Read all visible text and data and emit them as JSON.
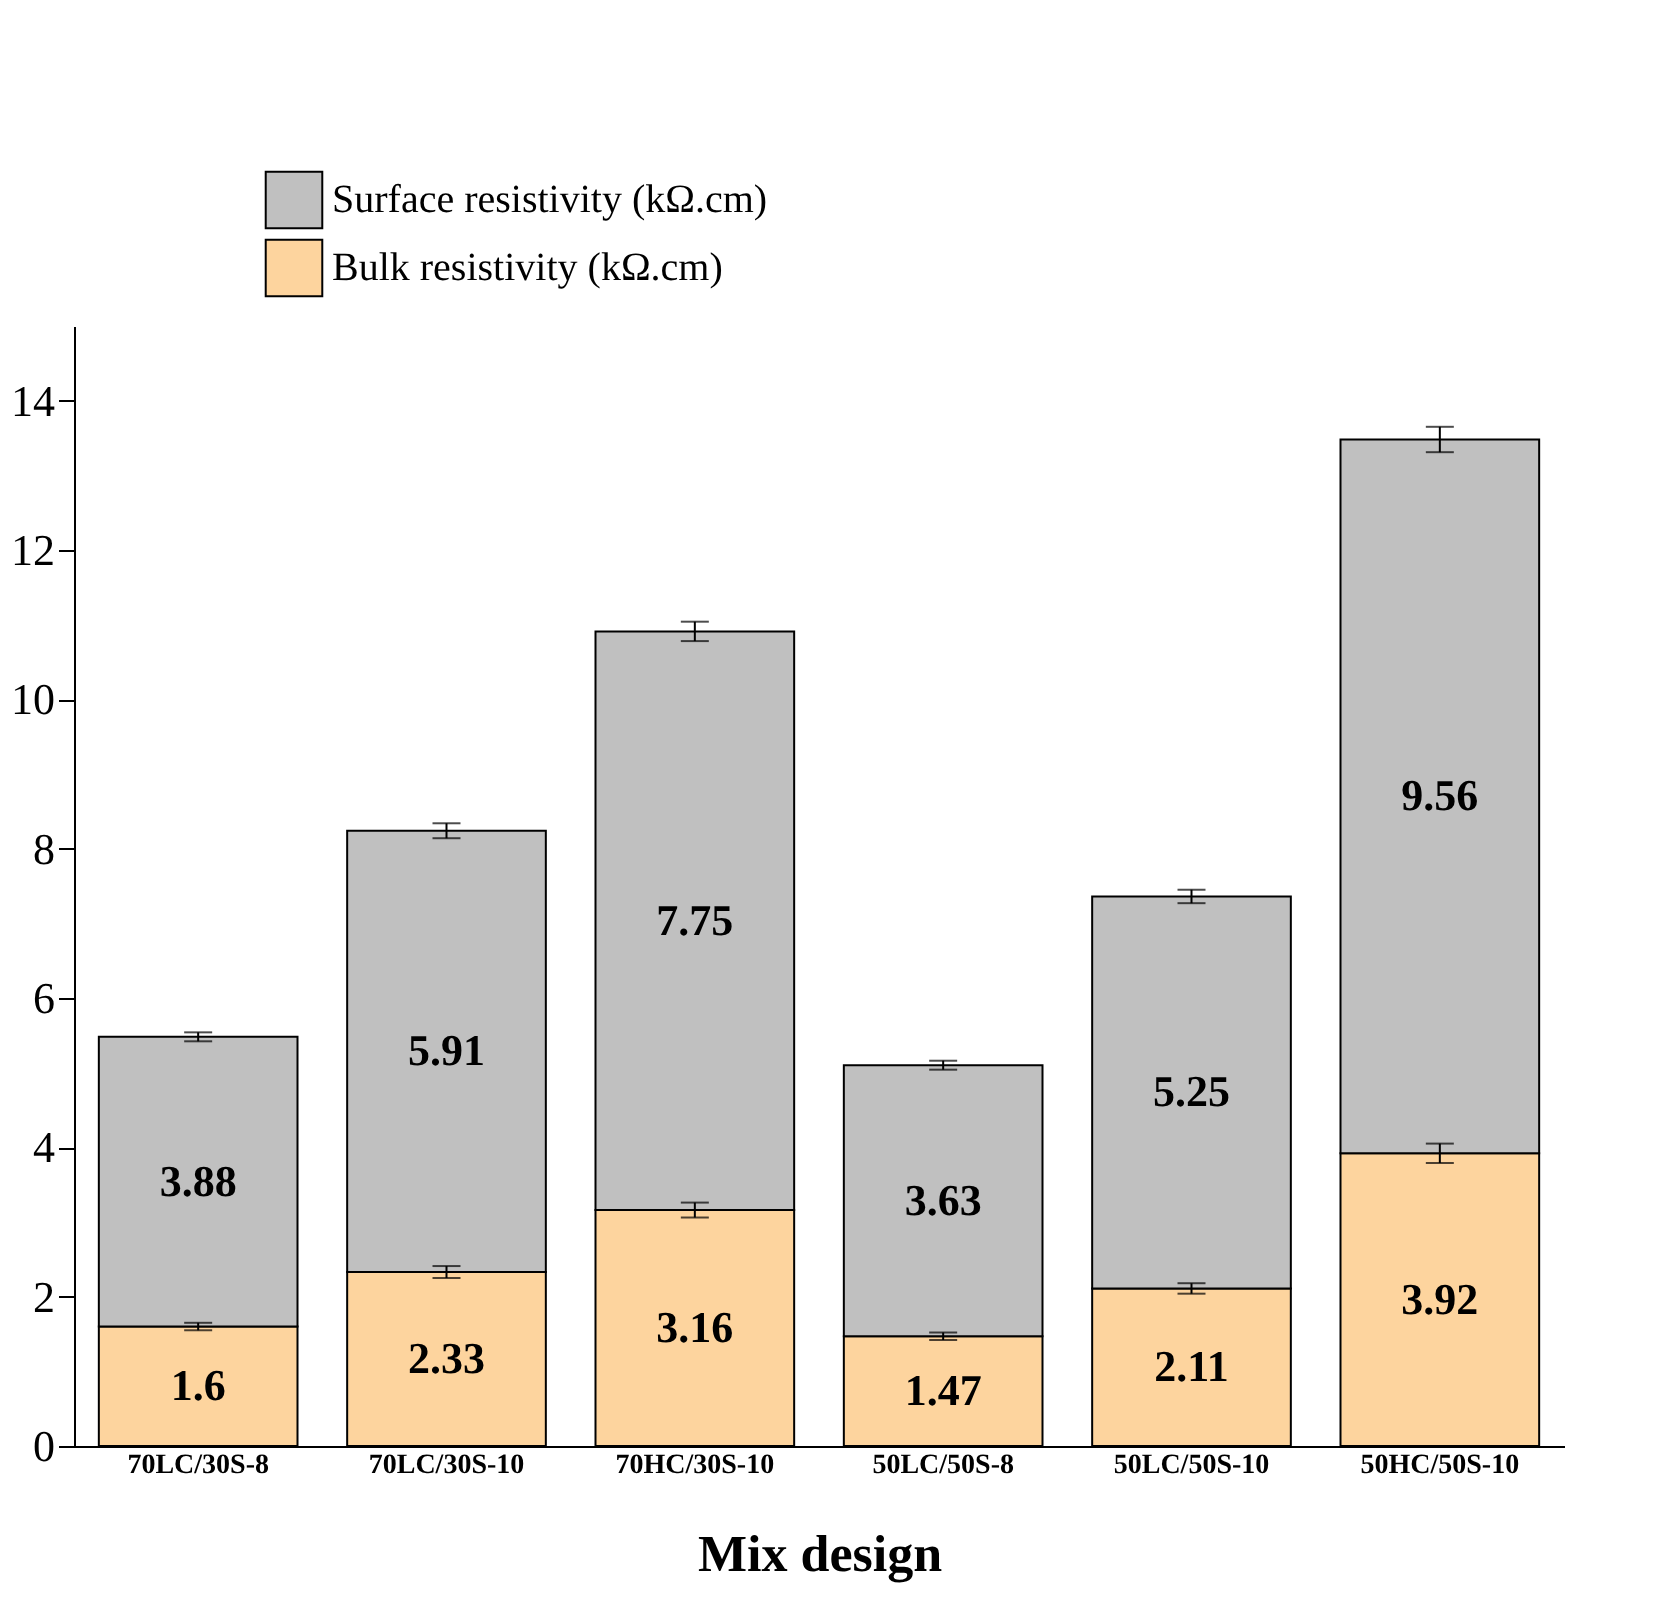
{
  "chart_data": {
    "type": "bar",
    "stacked": true,
    "xlabel": "Mix design",
    "categories": [
      "70LC/30S-8",
      "70LC/30S-10",
      "70HC/30S-10",
      "50LC/50S-8",
      "50LC/50S-10",
      "50HC/50S-10"
    ],
    "series": [
      {
        "name": "Bulk resistivity (kΩ.cm)",
        "color": "#fdd49e",
        "values": [
          1.6,
          2.33,
          3.16,
          1.47,
          2.11,
          3.92
        ],
        "errors": [
          0.05,
          0.08,
          0.1,
          0.05,
          0.07,
          0.13
        ]
      },
      {
        "name": "Surface resistivity (kΩ.cm)",
        "color": "#c0c0c0",
        "values": [
          3.88,
          5.91,
          7.75,
          3.63,
          5.25,
          9.56
        ],
        "errors": [
          0.06,
          0.1,
          0.13,
          0.06,
          0.09,
          0.17
        ]
      }
    ],
    "ylim": [
      0,
      15
    ],
    "yticks": [
      0,
      2,
      4,
      6,
      8,
      10,
      12,
      14
    ],
    "data_labels": true,
    "grid": false,
    "legend": "top left"
  }
}
